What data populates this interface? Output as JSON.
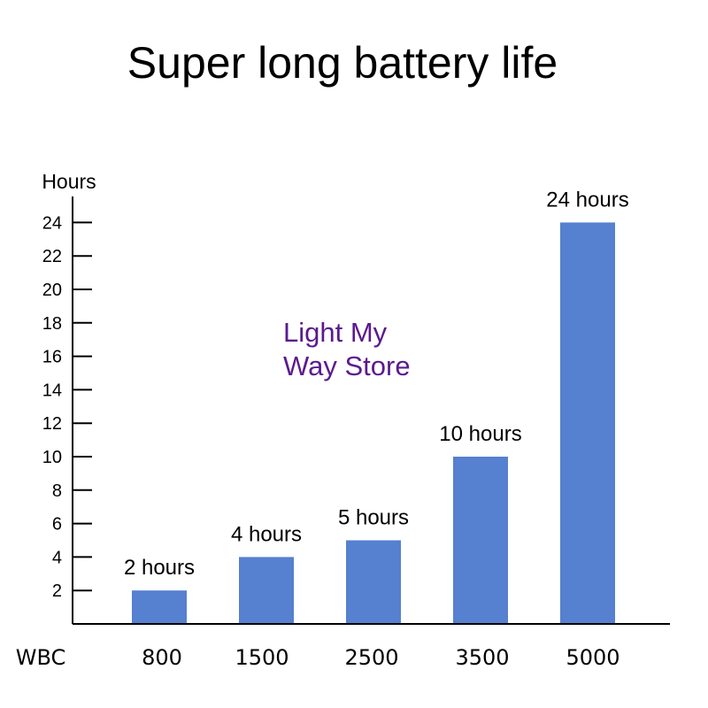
{
  "chart_data": {
    "type": "bar",
    "title": "Super long battery life",
    "ylabel": "Hours",
    "xlabel": "WBC",
    "categories": [
      "800",
      "1500",
      "2500",
      "3500",
      "5000"
    ],
    "values": [
      2,
      4,
      5,
      10,
      24
    ],
    "data_labels": [
      "2 hours",
      "4 hours",
      "5 hours",
      "10 hours",
      "24 hours"
    ],
    "yticks": [
      2,
      4,
      6,
      8,
      10,
      12,
      14,
      16,
      18,
      20,
      22,
      24
    ],
    "ylim": [
      0,
      25
    ],
    "grid": false,
    "legend": "none",
    "bar_color": "#5680d0",
    "annotation": {
      "line1": "Light My",
      "line2": "Way Store",
      "color": "#5b1a8e"
    }
  }
}
